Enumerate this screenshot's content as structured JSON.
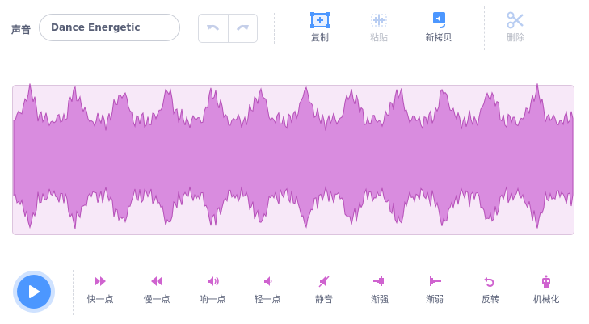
{
  "header": {
    "label": "声音",
    "sound_name": "Dance Energetic"
  },
  "toolbar": [
    "复制",
    "粘贴",
    "新拷贝",
    "删除"
  ],
  "effects": [
    "快一点",
    "慢一点",
    "响一点",
    "轻一点",
    "静音",
    "渐强",
    "渐弱",
    "反转",
    "机械化"
  ]
}
